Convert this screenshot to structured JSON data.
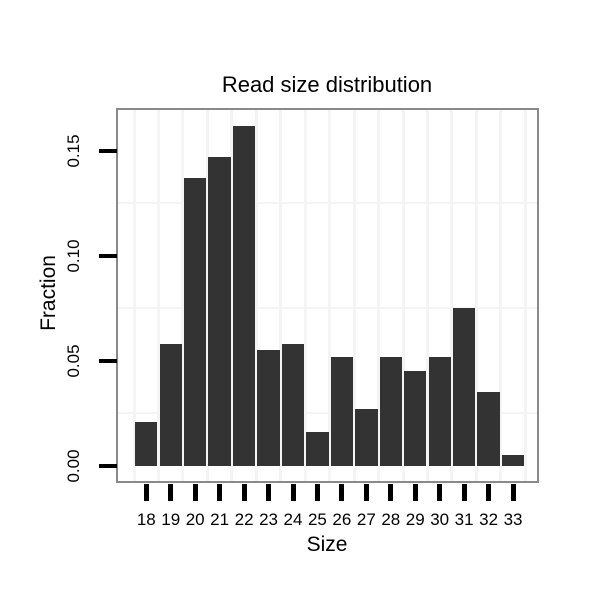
{
  "figure": {
    "background": "#ffffff"
  },
  "chart_data": {
    "type": "bar",
    "title": "Read size distribution",
    "xlabel": "Size",
    "ylabel": "Fraction",
    "categories": [
      "18",
      "19",
      "20",
      "21",
      "22",
      "23",
      "24",
      "25",
      "26",
      "27",
      "28",
      "29",
      "30",
      "31",
      "32",
      "33"
    ],
    "values": [
      0.021,
      0.058,
      0.137,
      0.147,
      0.162,
      0.055,
      0.058,
      0.016,
      0.052,
      0.027,
      0.052,
      0.045,
      0.052,
      0.075,
      0.035,
      0.005
    ],
    "y_ticks": [
      {
        "label": "0.00",
        "value": 0.0
      },
      {
        "label": "0.05",
        "value": 0.05
      },
      {
        "label": "0.10",
        "value": 0.1
      },
      {
        "label": "0.15",
        "value": 0.15
      }
    ],
    "y_minor_gridlines": [
      0.025,
      0.075,
      0.125
    ],
    "ylim": [
      0,
      0.169
    ],
    "grid": "minor-only",
    "legend": "none",
    "colors": {
      "bar": "#333333",
      "panel_border": "#8a8a8a",
      "grid_minor": "#f4f4f4",
      "tick": "#000000",
      "text": "#000000"
    }
  }
}
